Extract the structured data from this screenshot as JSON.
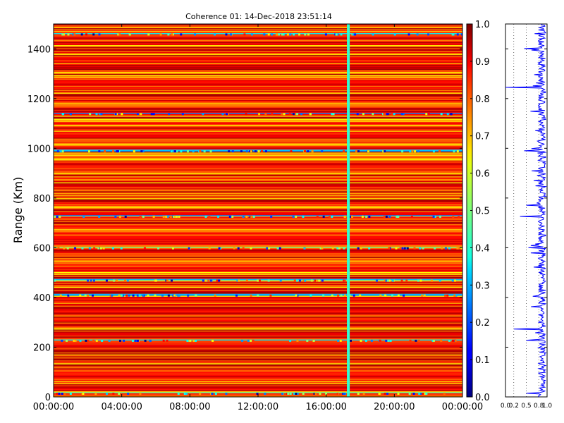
{
  "chart_data": {
    "type": "heatmap",
    "title": "Coherence 01: 14-Dec-2018 23:51:14",
    "xlabel": "",
    "ylabel": "Range (Km)",
    "x_ticks": [
      "00:00:00",
      "04:00:00",
      "08:00:00",
      "12:00:00",
      "16:00:00",
      "20:00:00",
      "00:00:00"
    ],
    "xlim_hours": [
      0,
      24
    ],
    "y_ticks": [
      0,
      200,
      400,
      600,
      800,
      1000,
      1200,
      1400
    ],
    "ylim": [
      0,
      1500
    ],
    "colorbar": {
      "colormap": "jet",
      "range": [
        0.0,
        1.0
      ],
      "ticks": [
        "0.0",
        "0.1",
        "0.2",
        "0.3",
        "0.4",
        "0.5",
        "0.6",
        "0.7",
        "0.8",
        "0.9",
        "1.0"
      ]
    },
    "typical_coherence": 0.85,
    "low_coherence_range_bands_km": [
      15,
      228,
      410,
      470,
      600,
      727,
      990,
      1140,
      1460
    ],
    "low_coherence_time_hours": [
      17.3
    ],
    "side_profile": {
      "type": "line",
      "xlim": [
        0.0,
        1.0
      ],
      "x_ticks": [
        "0.0",
        "0.2",
        "0.5",
        "0.8",
        "1.0"
      ],
      "ylim": [
        0,
        1500
      ],
      "typical_value": 0.88,
      "dips": [
        {
          "range_km": 15,
          "value": 0.5
        },
        {
          "range_km": 228,
          "value": 0.5
        },
        {
          "range_km": 273,
          "value": 0.2
        },
        {
          "range_km": 600,
          "value": 0.55
        },
        {
          "range_km": 727,
          "value": 0.35
        },
        {
          "range_km": 770,
          "value": 0.5
        },
        {
          "range_km": 990,
          "value": 0.45
        },
        {
          "range_km": 1150,
          "value": 0.6
        },
        {
          "range_km": 1245,
          "value": 0.0
        },
        {
          "range_km": 1400,
          "value": 0.45
        },
        {
          "range_km": 1460,
          "value": 0.7
        }
      ]
    }
  }
}
